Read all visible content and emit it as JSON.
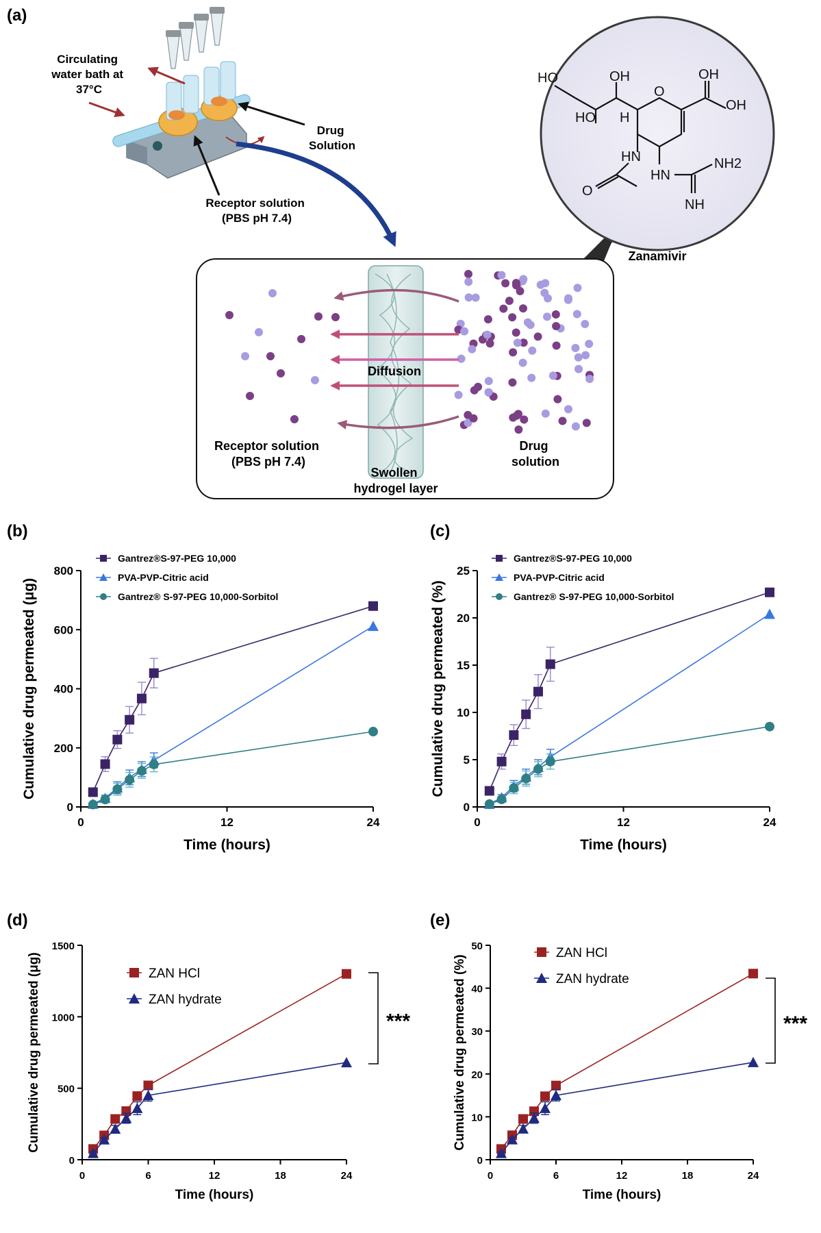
{
  "panel_a": {
    "label": "(a)",
    "apparatus_labels": {
      "water_bath": [
        "Circulating",
        "water bath at",
        "37°C"
      ],
      "drug_solution": [
        "Drug",
        "Solution"
      ],
      "receptor_solution": [
        "Receptor solution",
        "(PBS pH 7.4)"
      ]
    },
    "zoom_labels": {
      "receptor": [
        "Receptor solution",
        "(PBS pH 7.4)"
      ],
      "hydrogel": [
        "Swollen",
        "hydrogel layer"
      ],
      "drug": [
        "Drug",
        "solution"
      ],
      "diffusion": "Diffusion"
    },
    "molecule": {
      "name": "Zanamivir",
      "atoms": [
        "HO",
        "OH",
        "O",
        "OH",
        "HO",
        "H",
        "HN",
        "HN",
        "NH2",
        "O",
        "NH"
      ]
    },
    "colors": {
      "dark_particle": "#7b3f86",
      "light_particle": "#a99be0",
      "arrow": "#c0507a",
      "big_arrow": "#1e3d8f"
    }
  },
  "chart_data": [
    {
      "panel": "(b)",
      "type": "line",
      "xlabel": "Time (hours)",
      "ylabel": "Cumulative drug permeated (μg)",
      "xlim": [
        0,
        24
      ],
      "ylim": [
        0,
        800
      ],
      "xticks": [
        0,
        12,
        24
      ],
      "yticks": [
        0,
        200,
        400,
        600,
        800
      ],
      "legend_position": "top-left",
      "series": [
        {
          "name": "Gantrez®S-97-PEG 10,000",
          "marker": "square",
          "color": "#3a2466",
          "errcolor": "#9a86cc",
          "x": [
            1,
            2,
            3,
            4,
            5,
            6,
            24
          ],
          "y": [
            50,
            145,
            228,
            295,
            367,
            453,
            680
          ],
          "err": [
            10,
            25,
            30,
            45,
            55,
            50,
            0
          ]
        },
        {
          "name": "PVA-PVP-Citric acid",
          "marker": "triangle",
          "color": "#3a78e0",
          "errcolor": "#3a78e0",
          "x": [
            1,
            2,
            3,
            4,
            5,
            6,
            24
          ],
          "y": [
            10,
            30,
            65,
            100,
            128,
            158,
            612
          ],
          "err": [
            5,
            10,
            20,
            25,
            25,
            25,
            0
          ]
        },
        {
          "name": "Gantrez® S-97-PEG 10,000-Sorbitol",
          "marker": "circle",
          "color": "#2f7f85",
          "errcolor": "#5fb8bd",
          "x": [
            1,
            2,
            3,
            4,
            5,
            6,
            24
          ],
          "y": [
            8,
            25,
            60,
            92,
            122,
            144,
            255
          ],
          "err": [
            5,
            10,
            20,
            25,
            25,
            25,
            0
          ]
        }
      ]
    },
    {
      "panel": "(c)",
      "type": "line",
      "xlabel": "Time (hours)",
      "ylabel": "Cumulative drug permeated (%)",
      "xlim": [
        0,
        24
      ],
      "ylim": [
        0,
        25
      ],
      "xticks": [
        0,
        12,
        24
      ],
      "yticks": [
        0,
        5,
        10,
        15,
        20,
        25
      ],
      "legend_position": "top-left",
      "series": [
        {
          "name": "Gantrez®S-97-PEG 10,000",
          "marker": "square",
          "color": "#3a2466",
          "errcolor": "#9a86cc",
          "x": [
            1,
            2,
            3,
            4,
            5,
            6,
            24
          ],
          "y": [
            1.7,
            4.8,
            7.6,
            9.8,
            12.2,
            15.1,
            22.7
          ],
          "err": [
            0.3,
            0.8,
            1.1,
            1.5,
            1.8,
            1.8,
            0
          ]
        },
        {
          "name": "PVA-PVP-Citric acid",
          "marker": "triangle",
          "color": "#3a78e0",
          "errcolor": "#3a78e0",
          "x": [
            1,
            2,
            3,
            4,
            5,
            6,
            24
          ],
          "y": [
            0.3,
            1.0,
            2.2,
            3.2,
            4.2,
            5.3,
            20.4
          ],
          "err": [
            0.2,
            0.3,
            0.6,
            0.8,
            0.8,
            0.8,
            0
          ]
        },
        {
          "name": "Gantrez® S-97-PEG 10,000-Sorbitol",
          "marker": "circle",
          "color": "#2f7f85",
          "errcolor": "#5fb8bd",
          "x": [
            1,
            2,
            3,
            4,
            5,
            6,
            24
          ],
          "y": [
            0.3,
            0.8,
            2.0,
            3.0,
            4.0,
            4.8,
            8.5
          ],
          "err": [
            0.2,
            0.3,
            0.6,
            0.8,
            0.8,
            0.8,
            0
          ]
        }
      ]
    },
    {
      "panel": "(d)",
      "type": "line",
      "xlabel": "Time (hours)",
      "ylabel": "Cumulative drug permeated (μg)",
      "xlim": [
        0,
        24
      ],
      "ylim": [
        0,
        1500
      ],
      "xticks": [
        0,
        6,
        12,
        18,
        24
      ],
      "yticks": [
        0,
        500,
        1000,
        1500
      ],
      "legend_position": "top-left",
      "significance": "***",
      "series": [
        {
          "name": "ZAN HCl",
          "marker": "square",
          "color": "#9b2222",
          "errcolor": "#9b2222",
          "x": [
            1,
            2,
            3,
            4,
            5,
            6,
            24
          ],
          "y": [
            75,
            170,
            285,
            340,
            445,
            520,
            1300
          ],
          "err": [
            10,
            15,
            15,
            20,
            25,
            20,
            0
          ]
        },
        {
          "name": "ZAN hydrate",
          "marker": "triangle",
          "color": "#1f2a80",
          "errcolor": "#1f2a80",
          "x": [
            1,
            2,
            3,
            4,
            5,
            6,
            24
          ],
          "y": [
            45,
            140,
            215,
            290,
            360,
            450,
            680
          ],
          "err": [
            10,
            15,
            25,
            35,
            45,
            40,
            0
          ]
        }
      ]
    },
    {
      "panel": "(e)",
      "type": "line",
      "xlabel": "Time (hours)",
      "ylabel": "Cumulative drug permeated (%)",
      "xlim": [
        0,
        24
      ],
      "ylim": [
        0,
        50
      ],
      "xticks": [
        0,
        6,
        12,
        18,
        24
      ],
      "yticks": [
        0,
        10,
        20,
        30,
        40,
        50
      ],
      "legend_position": "top-left",
      "significance": "***",
      "series": [
        {
          "name": "ZAN HCl",
          "marker": "square",
          "color": "#9b2222",
          "errcolor": "#9b2222",
          "x": [
            1,
            2,
            3,
            4,
            5,
            6,
            24
          ],
          "y": [
            2.5,
            5.7,
            9.5,
            11.3,
            14.8,
            17.3,
            43.4
          ],
          "err": [
            0.3,
            0.5,
            0.5,
            0.7,
            0.8,
            0.7,
            0
          ]
        },
        {
          "name": "ZAN hydrate",
          "marker": "triangle",
          "color": "#1f2a80",
          "errcolor": "#1f2a80",
          "x": [
            1,
            2,
            3,
            4,
            5,
            6,
            24
          ],
          "y": [
            1.5,
            4.7,
            7.2,
            9.7,
            12.0,
            15.0,
            22.7
          ],
          "err": [
            0.3,
            0.5,
            0.8,
            1.2,
            1.5,
            1.3,
            0
          ]
        }
      ]
    }
  ]
}
